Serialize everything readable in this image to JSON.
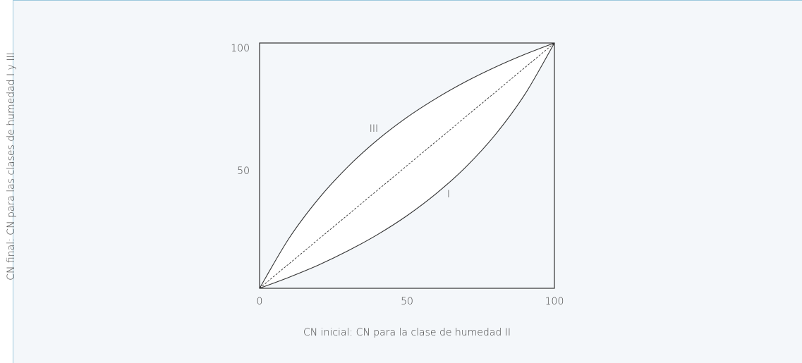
{
  "chart_data": {
    "type": "line",
    "x_label": "CN inicial: CN para la clase de humedad II",
    "y_label": "CN final: CN para las clases de humedad I y III",
    "x": [
      0,
      10,
      20,
      30,
      40,
      50,
      60,
      70,
      80,
      90,
      100
    ],
    "series": [
      {
        "name": "III",
        "color": "#333333",
        "values": [
          0,
          20.4,
          36.5,
          49.6,
          60.5,
          69.7,
          77.5,
          84.3,
          90.2,
          95.4,
          100
        ]
      },
      {
        "color": "#333333",
        "dashed": true,
        "values": [
          0,
          10,
          20,
          30,
          40,
          50,
          60,
          70,
          80,
          90,
          100
        ]
      },
      {
        "name": "I",
        "color": "#333333",
        "values": [
          0,
          4.5,
          9.5,
          15.3,
          21.9,
          29.6,
          38.7,
          49.5,
          62.7,
          79.1,
          100
        ]
      }
    ],
    "xlim": [
      0,
      100
    ],
    "ylim": [
      0,
      100
    ],
    "xticks": [
      0,
      50,
      100
    ],
    "yticks": [
      50,
      100
    ]
  }
}
